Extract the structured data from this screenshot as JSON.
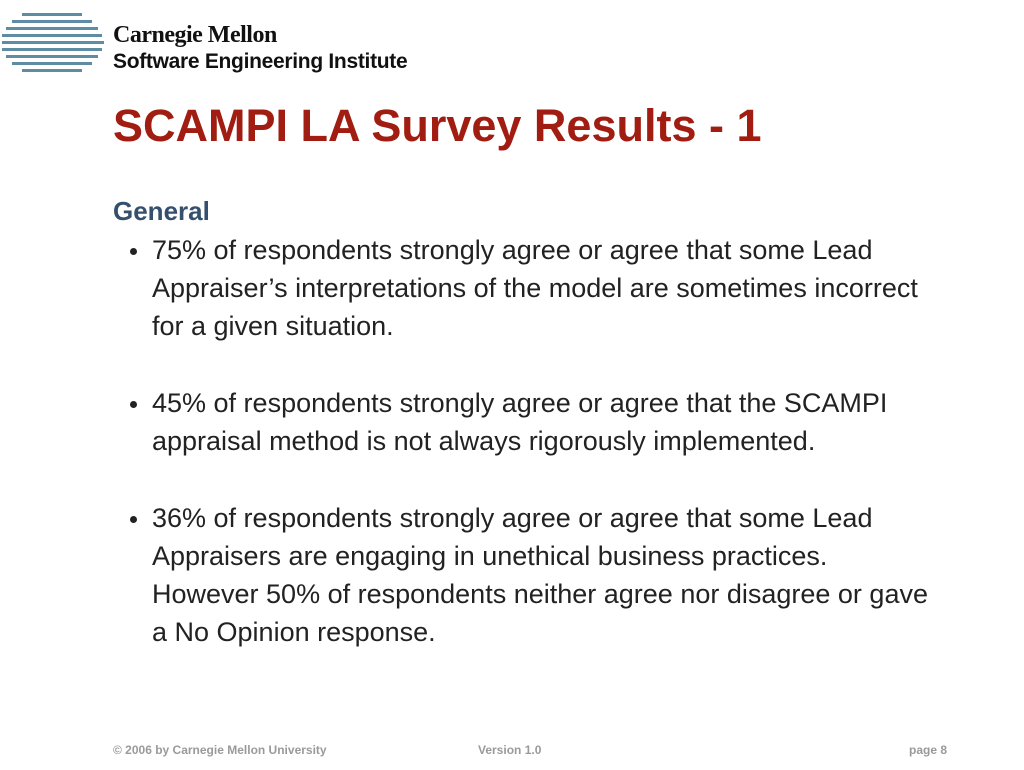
{
  "header": {
    "org": "Carnegie Mellon",
    "institute": "Software Engineering Institute"
  },
  "title": "SCAMPI LA Survey Results - 1",
  "section": "General",
  "bullets": [
    "75% of respondents strongly agree or agree that some Lead Appraiser’s interpretations of the model are sometimes incorrect for a given situation.",
    "45% of respondents strongly agree or agree that the SCAMPI appraisal method is not always rigorously implemented.",
    "36% of respondents strongly agree or agree that some Lead Appraisers are engaging in unethical business practices. However 50% of respondents neither agree nor disagree or gave a No Opinion response."
  ],
  "footer": {
    "copyright": "© 2006 by Carnegie Mellon University",
    "version": "Version 1.0",
    "page": "page 8"
  }
}
